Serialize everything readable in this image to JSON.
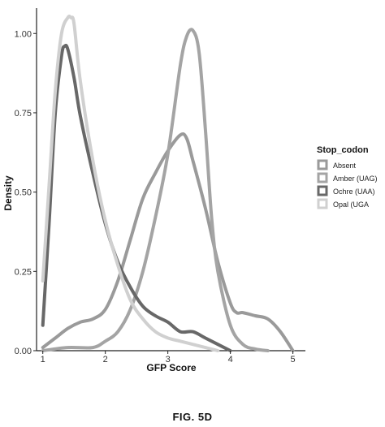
{
  "chart_data": {
    "type": "line",
    "subtype": "density",
    "xlabel": "GFP Score",
    "ylabel": "Density",
    "xlim": [
      0.9,
      5.2
    ],
    "ylim": [
      0,
      1.08
    ],
    "x_ticks": [
      1,
      2,
      3,
      4,
      5
    ],
    "y_ticks": [
      0.0,
      0.25,
      0.5,
      0.75,
      1.0
    ],
    "y_tick_labels": [
      "0.00",
      "0.25",
      "0.50",
      "0.75",
      "1.00"
    ],
    "grid": false,
    "legend_position": "right",
    "legend_title": "Stop_codon",
    "series": [
      {
        "name": "Absent",
        "color": "#9a9a9a",
        "x": [
          1.0,
          1.2,
          1.4,
          1.6,
          1.8,
          2.0,
          2.2,
          2.4,
          2.6,
          2.8,
          3.0,
          3.2,
          3.3,
          3.4,
          3.6,
          3.8,
          4.0,
          4.1,
          4.2,
          4.4,
          4.6,
          4.8,
          5.0
        ],
        "y": [
          0.01,
          0.04,
          0.07,
          0.09,
          0.1,
          0.13,
          0.22,
          0.35,
          0.48,
          0.56,
          0.63,
          0.68,
          0.67,
          0.6,
          0.45,
          0.28,
          0.15,
          0.12,
          0.12,
          0.11,
          0.1,
          0.06,
          0.0
        ]
      },
      {
        "name": "Amber (UAG)",
        "color": "#a4a4a4",
        "x": [
          1.0,
          1.4,
          1.8,
          2.0,
          2.2,
          2.4,
          2.6,
          2.8,
          3.0,
          3.2,
          3.3,
          3.4,
          3.5,
          3.6,
          3.7,
          3.8,
          4.0,
          4.2,
          4.4,
          4.6
        ],
        "y": [
          0.0,
          0.01,
          0.01,
          0.03,
          0.06,
          0.13,
          0.25,
          0.42,
          0.62,
          0.9,
          0.99,
          1.01,
          0.94,
          0.7,
          0.42,
          0.25,
          0.08,
          0.02,
          0.005,
          0.0
        ]
      },
      {
        "name": "Ochre (UAA)",
        "color": "#686868",
        "x": [
          1.0,
          1.1,
          1.2,
          1.3,
          1.35,
          1.4,
          1.5,
          1.6,
          1.8,
          2.0,
          2.2,
          2.4,
          2.6,
          2.8,
          3.0,
          3.2,
          3.4,
          3.6,
          3.8,
          4.0
        ],
        "y": [
          0.08,
          0.4,
          0.75,
          0.93,
          0.96,
          0.95,
          0.86,
          0.74,
          0.56,
          0.4,
          0.28,
          0.2,
          0.14,
          0.11,
          0.09,
          0.06,
          0.06,
          0.04,
          0.02,
          0.0
        ]
      },
      {
        "name": "Opal (UGA",
        "color": "#d0d0d0",
        "x": [
          1.0,
          1.1,
          1.2,
          1.3,
          1.4,
          1.45,
          1.5,
          1.6,
          1.8,
          2.0,
          2.2,
          2.4,
          2.6,
          2.8,
          3.0,
          3.2,
          3.4,
          3.6,
          3.8
        ],
        "y": [
          0.22,
          0.52,
          0.82,
          1.0,
          1.05,
          1.05,
          1.03,
          0.85,
          0.6,
          0.41,
          0.27,
          0.16,
          0.1,
          0.06,
          0.04,
          0.03,
          0.02,
          0.01,
          0.0
        ]
      }
    ]
  },
  "caption": "FIG. 5D"
}
